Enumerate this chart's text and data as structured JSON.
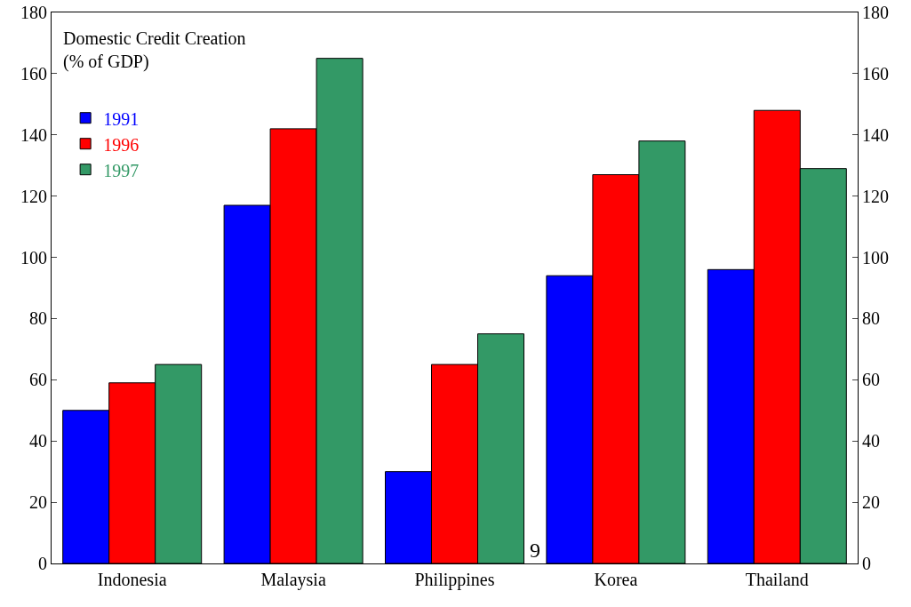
{
  "chart_data": {
    "type": "bar",
    "title": "Domestic Credit Creation\n(% of GDP)",
    "categories": [
      "Indonesia",
      "Malaysia",
      "Philippines",
      "Korea",
      "Thailand"
    ],
    "series": [
      {
        "name": "1991",
        "color": "#0000ff",
        "values": [
          50,
          117,
          30,
          94,
          96
        ]
      },
      {
        "name": "1996",
        "color": "#ff0000",
        "values": [
          59,
          142,
          65,
          127,
          148
        ]
      },
      {
        "name": "1997",
        "color": "#339966",
        "values": [
          65,
          165,
          75,
          138,
          129
        ]
      }
    ],
    "ylim": [
      0,
      180
    ],
    "yticks": [
      0,
      20,
      40,
      60,
      80,
      100,
      120,
      140,
      160,
      180
    ],
    "y2lim": [
      0,
      180
    ],
    "y2ticks": [
      0,
      20,
      40,
      60,
      80,
      100,
      120,
      140,
      160,
      180
    ],
    "grid": false,
    "legend": "top left",
    "annotations": [
      "9"
    ]
  }
}
